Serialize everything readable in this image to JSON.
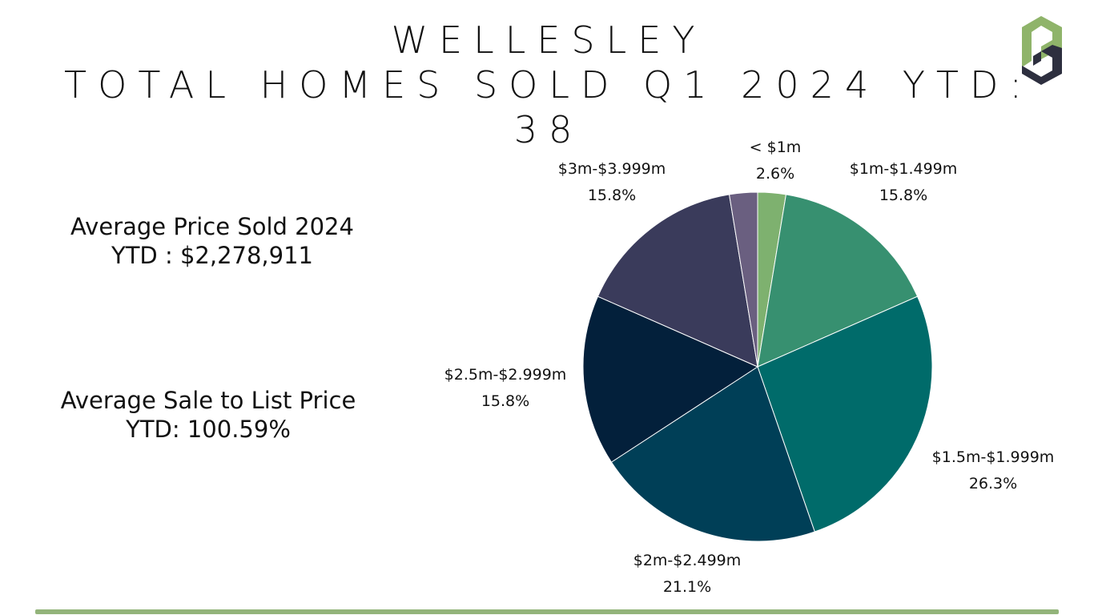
{
  "title": {
    "line1": "WELLESLEY",
    "line2": "TOTAL HOMES SOLD Q1 2024 YTD:",
    "line3": "38"
  },
  "stats": {
    "avg_price_line1": "Average Price Sold 2024",
    "avg_price_line2": "YTD : $2,278,911",
    "sale_to_list_line1": "Average Sale to List Price",
    "sale_to_list_line2": "YTD: 100.59%"
  },
  "logo": {
    "icon": "pd-logo-icon",
    "colors": [
      "#8fb46a",
      "#2d2f3f"
    ]
  },
  "accent_rule_color": "#93b47a",
  "chart_data": {
    "type": "pie",
    "title": "",
    "start": "12 o'clock",
    "direction": "clockwise",
    "slices": [
      {
        "label": "< $1m",
        "value": 2.6,
        "value_label": "2.6%",
        "color": "#7eb16f"
      },
      {
        "label": "$1m-$1.499m",
        "value": 15.8,
        "value_label": "15.8%",
        "color": "#379070"
      },
      {
        "label": "$1.5m-$1.999m",
        "value": 26.3,
        "value_label": "26.3%",
        "color": "#006b6a"
      },
      {
        "label": "$2m-$2.499m",
        "value": 21.1,
        "value_label": "21.1%",
        "color": "#003f57"
      },
      {
        "label": "$2.5m-$2.999m",
        "value": 15.8,
        "value_label": "15.8%",
        "color": "#03203b"
      },
      {
        "label": "$3m-$3.999m",
        "value": 15.8,
        "value_label": "15.8%",
        "color": "#3a3b5b"
      },
      {
        "label": "",
        "value": 2.6,
        "value_label": "",
        "color": "#6a5f80"
      }
    ]
  }
}
